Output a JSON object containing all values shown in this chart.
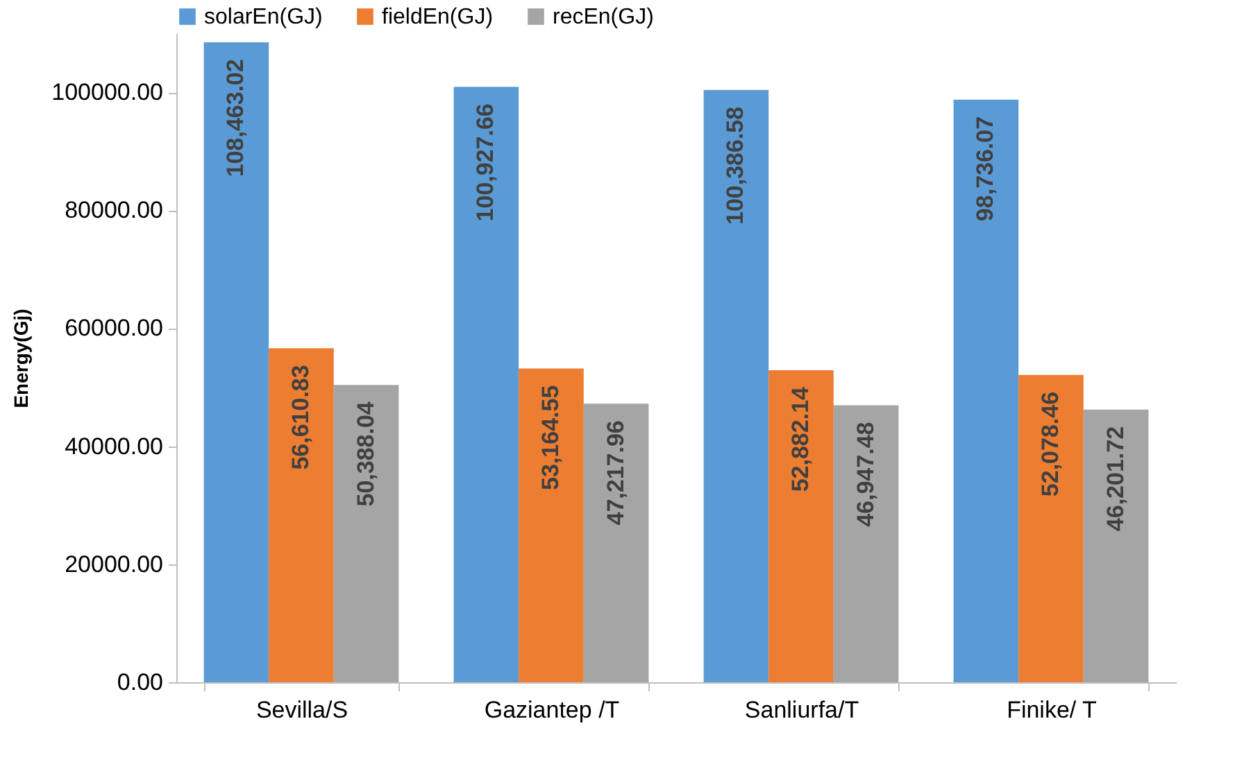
{
  "chart_data": {
    "type": "bar",
    "ylabel": "Energy(Gj)",
    "categories": [
      "Sevilla/S",
      "Gaziantep /T",
      "Sanliurfa/T",
      "Finike/ T"
    ],
    "series": [
      {
        "name": "solarEn(GJ)",
        "color": "#5b9bd5",
        "values": [
          108463.02,
          100927.66,
          100386.58,
          98736.07
        ],
        "value_labels": [
          "108,463.02",
          "100,927.66",
          "100,386.58",
          "98,736.07"
        ]
      },
      {
        "name": "fieldEn(GJ)",
        "color": "#ed7d31",
        "values": [
          56610.83,
          53164.55,
          52882.14,
          52078.46
        ],
        "value_labels": [
          "56,610.83",
          "53,164.55",
          "52,882.14",
          "52,078.46"
        ]
      },
      {
        "name": "recEn(GJ)",
        "color": "#a5a5a5",
        "values": [
          50388.04,
          47217.96,
          46947.48,
          46201.72
        ],
        "value_labels": [
          "50,388.04",
          "47,217.96",
          "46,947.48",
          "46,201.72"
        ]
      }
    ],
    "ylim": [
      0,
      110000
    ],
    "yticks": [
      {
        "value": 0,
        "label": "0.00"
      },
      {
        "value": 20000,
        "label": "20000.00"
      },
      {
        "value": 40000,
        "label": "40000.00"
      },
      {
        "value": 60000,
        "label": "60000.00"
      },
      {
        "value": 80000,
        "label": "80000.00"
      },
      {
        "value": 100000,
        "label": "100000.00"
      }
    ],
    "grid": false,
    "legend": "top"
  }
}
